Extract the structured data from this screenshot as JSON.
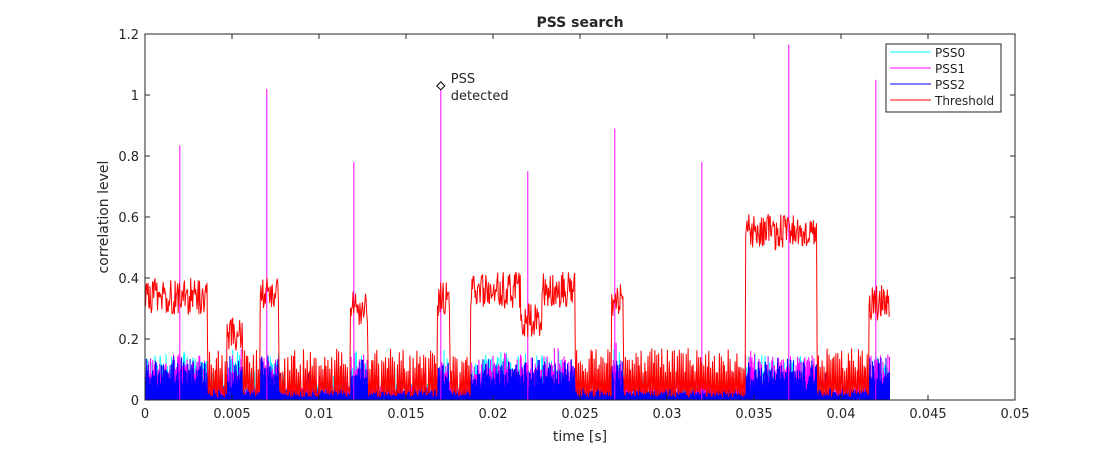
{
  "chart_data": {
    "type": "line",
    "title": "PSS search",
    "xlabel": "time [s]",
    "ylabel": "correlation level",
    "xlim": [
      0,
      0.05
    ],
    "ylim": [
      0,
      1.2
    ],
    "xticks": [
      "0",
      "0.005",
      "0.01",
      "0.015",
      "0.02",
      "0.025",
      "0.03",
      "0.035",
      "0.04",
      "0.045",
      "0.05"
    ],
    "yticks": [
      "0",
      "0.2",
      "0.4",
      "0.6",
      "0.8",
      "1",
      "1.2"
    ],
    "grid": false,
    "legend_position": "top-right",
    "data_end": 0.0428,
    "series": [
      {
        "name": "PSS0",
        "color": "#00ffff"
      },
      {
        "name": "PSS1",
        "color": "#ff00ff",
        "peaks": [
          {
            "x": 0.002,
            "y": 0.835
          },
          {
            "x": 0.007,
            "y": 1.02
          },
          {
            "x": 0.012,
            "y": 0.78
          },
          {
            "x": 0.017,
            "y": 1.03
          },
          {
            "x": 0.022,
            "y": 0.75
          },
          {
            "x": 0.027,
            "y": 0.89
          },
          {
            "x": 0.032,
            "y": 0.78
          },
          {
            "x": 0.037,
            "y": 1.165
          },
          {
            "x": 0.042,
            "y": 1.05
          }
        ]
      },
      {
        "name": "PSS2",
        "color": "#0000ff"
      },
      {
        "name": "Threshold",
        "color": "#ff0000",
        "segments": [
          [
            0,
            0.0036,
            0.34
          ],
          [
            0.0036,
            0.0047,
            0.05
          ],
          [
            0.0047,
            0.0056,
            0.22
          ],
          [
            0.0056,
            0.0066,
            0.05
          ],
          [
            0.0066,
            0.0077,
            0.35
          ],
          [
            0.0077,
            0.0118,
            0.08
          ],
          [
            0.0118,
            0.0128,
            0.3
          ],
          [
            0.0128,
            0.0168,
            0.08
          ],
          [
            0.0168,
            0.0175,
            0.33
          ],
          [
            0.0175,
            0.0187,
            0.08
          ],
          [
            0.0187,
            0.0216,
            0.36
          ],
          [
            0.0216,
            0.0228,
            0.26
          ],
          [
            0.0228,
            0.0247,
            0.36
          ],
          [
            0.0247,
            0.0268,
            0.06
          ],
          [
            0.0268,
            0.0275,
            0.32
          ],
          [
            0.0275,
            0.0345,
            0.08
          ],
          [
            0.0345,
            0.0386,
            0.55
          ],
          [
            0.0386,
            0.0416,
            0.08
          ],
          [
            0.0416,
            0.0428,
            0.32
          ]
        ]
      }
    ],
    "annotation": {
      "x": 0.017,
      "y": 1.03,
      "text_line1": "PSS",
      "text_line2": "detected"
    }
  }
}
